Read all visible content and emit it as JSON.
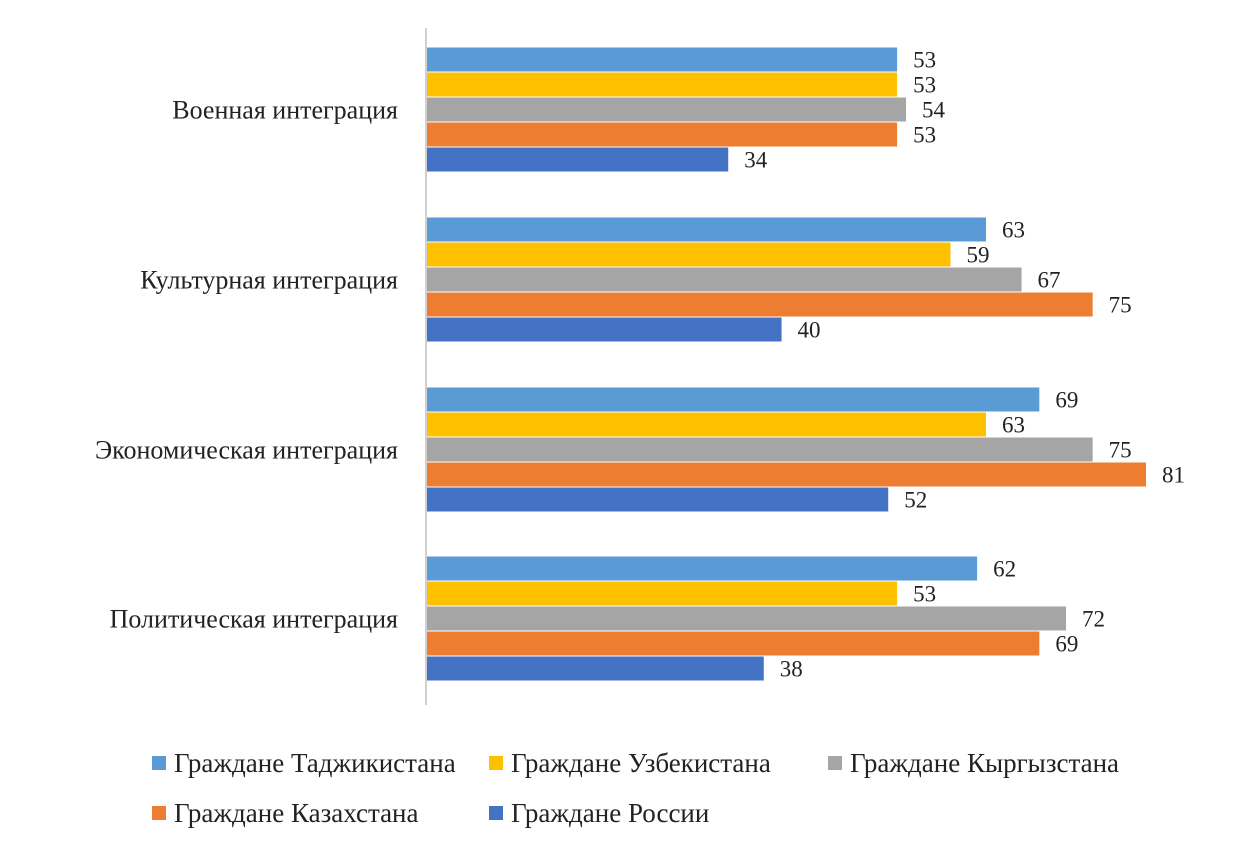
{
  "chart_data": {
    "type": "bar",
    "orientation": "horizontal",
    "categories": [
      "Военная интеграция",
      "Культурная интеграция",
      "Экономическая интеграция",
      "Политическая интеграция"
    ],
    "series": [
      {
        "name": "Граждане Таджикистана",
        "color": "#5B9BD5",
        "values": [
          53,
          63,
          69,
          62
        ]
      },
      {
        "name": "Граждане Узбекистана",
        "color": "#FFC000",
        "values": [
          53,
          59,
          63,
          53
        ]
      },
      {
        "name": "Граждане Кыргызстана",
        "color": "#A5A5A5",
        "values": [
          54,
          67,
          75,
          72
        ]
      },
      {
        "name": "Граждане Казахстана",
        "color": "#ED7D31",
        "values": [
          53,
          75,
          81,
          69
        ]
      },
      {
        "name": "Граждане России",
        "color": "#4472C4",
        "values": [
          34,
          40,
          52,
          38
        ]
      }
    ],
    "xlim": [
      0,
      81
    ],
    "data_labels": true,
    "grid": false,
    "legend_position": "bottom"
  }
}
